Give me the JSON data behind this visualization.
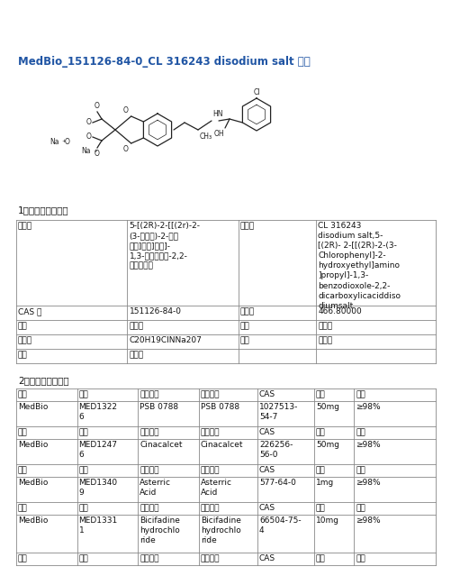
{
  "title": "MedBio_151126-84-0_CL 316243 disodium salt 参数",
  "title_color": "#2055a4",
  "section1": "1、产品物理参数：",
  "section2": "2、同类产品列表：",
  "bg_color": "#ffffff",
  "border_color": "#888888",
  "text_color": "#111111",
  "prop_row0_col1": "5-[(2R)-2-[[(2r)-2-\n(3-氯苯基)-2-缝基\n乙基]氨基]丙基]-\n1,3-苯并二氧中-2,2-\n二缧酸二钙",
  "prop_row0_col3": "CL 316243\ndisodium salt,5-\n[(2R)- 2-[[(2R)-2-(3-\nChlorophenyl]-2-\nhydroxyethyl]amino\n]propyl]-1,3-\nbenzodioxole-2,2-\ndicarboxylicaciddiso\ndiumsalt",
  "prop_rows": [
    [
      "CAS 号",
      "151126-84-0",
      "分子量",
      "466.80000"
    ],
    [
      "密度",
      "无资料",
      "熔点",
      "无资料"
    ],
    [
      "分子式",
      "C20H19ClNNa207",
      "永点",
      "无资料"
    ],
    [
      "闪点",
      "无资料",
      "",
      ""
    ]
  ],
  "rel_headers": [
    "品牌",
    "货号",
    "中文名称",
    "英文名称",
    "CAS",
    "包装",
    "纯度"
  ],
  "rel_products": [
    [
      "MedBio",
      "MED1322\n6",
      "PSB 0788",
      "PSB 0788",
      "1027513-\n54-7",
      "50mg",
      "≥98%"
    ],
    [
      "MedBio",
      "MED1247\n6",
      "Cinacalcet",
      "Cinacalcet",
      "226256-\n56-0",
      "50mg",
      "≥98%"
    ],
    [
      "MedBio",
      "MED1340\n9",
      "Asterric\nAcid",
      "Asterric\nAcid",
      "577-64-0",
      "1mg",
      "≥98%"
    ],
    [
      "MedBio",
      "MED1331\n1",
      "Bicifadine\nhydrochlo\nride",
      "Bicifadine\nhydrochlo\nride",
      "66504-75-\n4",
      "10mg",
      "≥98%"
    ]
  ]
}
